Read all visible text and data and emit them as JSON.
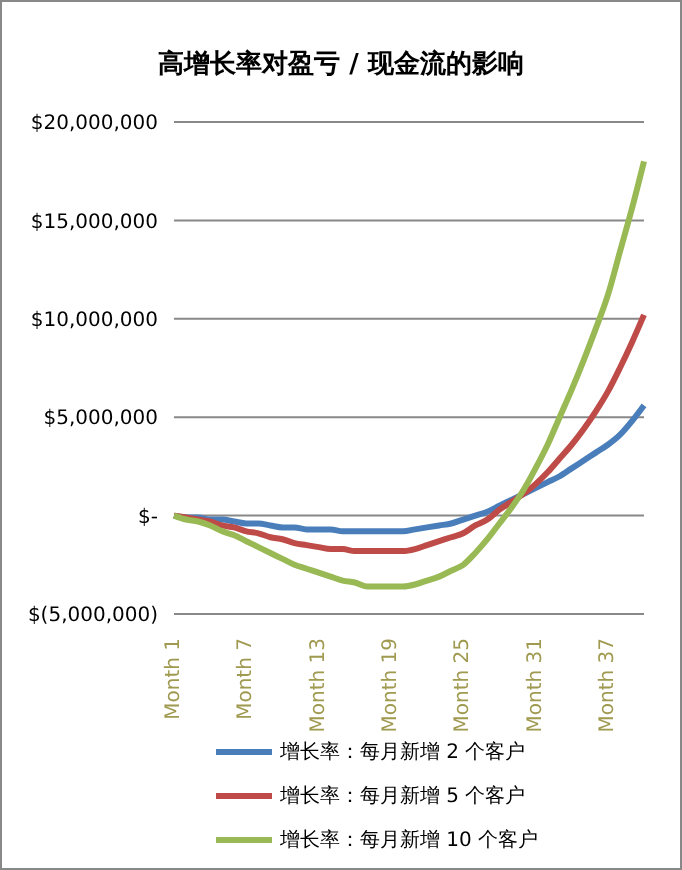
{
  "chart_data": {
    "type": "line",
    "title": "高增长率对盈亏 / 现金流的影响",
    "categories": [
      "Month 1",
      null,
      null,
      null,
      null,
      null,
      "Month 7",
      null,
      null,
      null,
      null,
      null,
      "Month 13",
      null,
      null,
      null,
      null,
      null,
      "Month 19",
      null,
      null,
      null,
      null,
      null,
      "Month 25",
      null,
      null,
      null,
      null,
      null,
      "Month 31",
      null,
      null,
      null,
      null,
      null,
      "Month 37",
      null,
      null,
      null
    ],
    "series": [
      {
        "name": "增长率：每月新增 2 个客户",
        "color": "#4a7ebb",
        "values": [
          0,
          -100000,
          -100000,
          -200000,
          -200000,
          -300000,
          -400000,
          -400000,
          -500000,
          -600000,
          -600000,
          -700000,
          -700000,
          -700000,
          -800000,
          -800000,
          -800000,
          -800000,
          -800000,
          -800000,
          -700000,
          -600000,
          -500000,
          -400000,
          -200000,
          0,
          200000,
          500000,
          800000,
          1100000,
          1400000,
          1700000,
          2000000,
          2400000,
          2800000,
          3200000,
          3600000,
          4100000,
          4800000,
          5600000
        ]
      },
      {
        "name": "增长率：每月新增 5 个客户",
        "color": "#be4b48",
        "values": [
          0,
          -100000,
          -200000,
          -300000,
          -500000,
          -600000,
          -800000,
          -900000,
          -1100000,
          -1200000,
          -1400000,
          -1500000,
          -1600000,
          -1700000,
          -1700000,
          -1800000,
          -1800000,
          -1800000,
          -1800000,
          -1800000,
          -1700000,
          -1500000,
          -1300000,
          -1100000,
          -900000,
          -500000,
          -200000,
          300000,
          700000,
          1100000,
          1600000,
          2200000,
          2900000,
          3600000,
          4400000,
          5300000,
          6300000,
          7500000,
          8800000,
          10200000
        ]
      },
      {
        "name": "增长率：每月新增 10 个客户",
        "color": "#98b954",
        "values": [
          0,
          -200000,
          -300000,
          -500000,
          -800000,
          -1000000,
          -1300000,
          -1600000,
          -1900000,
          -2200000,
          -2500000,
          -2700000,
          -2900000,
          -3100000,
          -3300000,
          -3400000,
          -3600000,
          -3600000,
          -3600000,
          -3600000,
          -3500000,
          -3300000,
          -3100000,
          -2800000,
          -2500000,
          -1900000,
          -1200000,
          -400000,
          400000,
          1300000,
          2400000,
          3600000,
          5000000,
          6400000,
          7900000,
          9500000,
          11200000,
          13400000,
          15600000,
          18000000
        ]
      }
    ],
    "ylim": [
      -5000000,
      20000000
    ],
    "yticks": [
      {
        "value": -5000000,
        "label": "$(5,000,000)"
      },
      {
        "value": 0,
        "label": "$-"
      },
      {
        "value": 5000000,
        "label": "$5,000,000"
      },
      {
        "value": 10000000,
        "label": "$10,000,000"
      },
      {
        "value": 15000000,
        "label": "$15,000,000"
      },
      {
        "value": 20000000,
        "label": "$20,000,000"
      }
    ],
    "grid": "y",
    "legend": "bottom",
    "marker": "none",
    "line_style": "solid"
  }
}
